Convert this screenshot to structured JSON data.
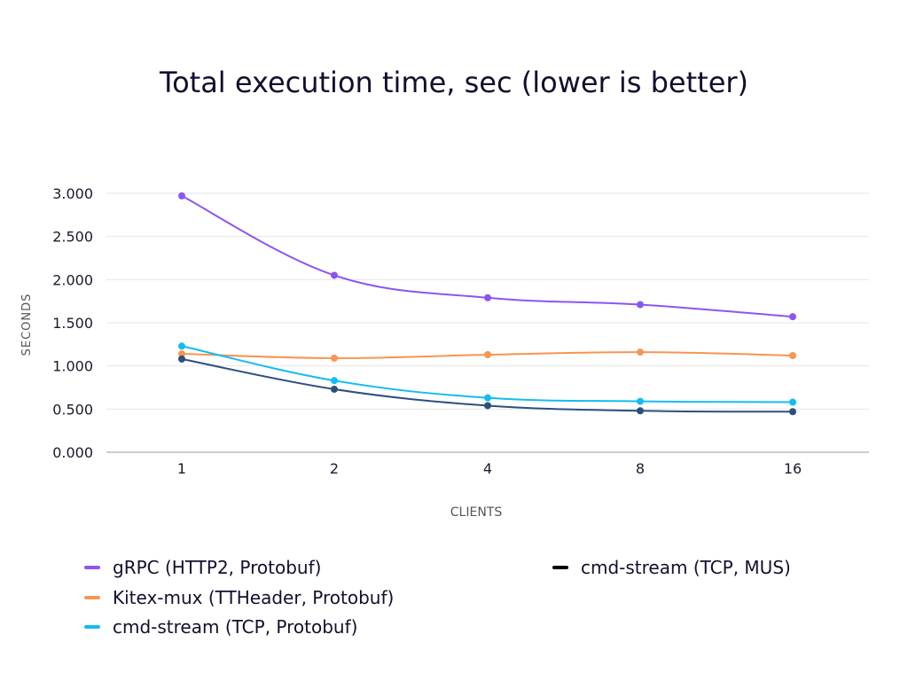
{
  "chart_data": {
    "type": "line",
    "title": "Total execution time, sec (lower is better)",
    "xlabel": "CLIENTS",
    "ylabel": "SECONDS",
    "categories": [
      "1",
      "2",
      "4",
      "8",
      "16"
    ],
    "y_ticks": [
      "0.000",
      "0.500",
      "1.000",
      "1.500",
      "2.000",
      "2.500",
      "3.000"
    ],
    "ylim": [
      0,
      3.0
    ],
    "grid": true,
    "legend_position": "bottom",
    "series": [
      {
        "name": "gRPC (HTTP2, Protobuf)",
        "color": "#8b55f2",
        "values": [
          2.97,
          2.05,
          1.79,
          1.71,
          1.57
        ]
      },
      {
        "name": "Kitex-mux (TTHeader, Protobuf)",
        "color": "#f79552",
        "values": [
          1.14,
          1.09,
          1.13,
          1.16,
          1.12
        ]
      },
      {
        "name": "cmd-stream (TCP, Protobuf)",
        "color": "#12bdf0",
        "values": [
          1.23,
          0.83,
          0.63,
          0.59,
          0.58
        ]
      },
      {
        "name": "cmd-stream (TCP, MUS)",
        "color": "#000000",
        "line_color": "#2d4f7c",
        "values": [
          1.08,
          0.73,
          0.54,
          0.48,
          0.47
        ]
      }
    ]
  }
}
